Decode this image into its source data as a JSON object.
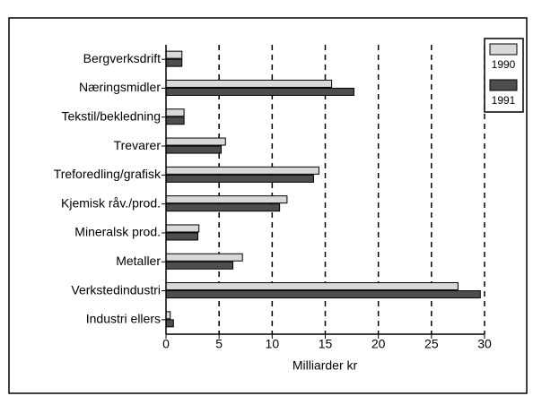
{
  "chart_data": {
    "type": "barh",
    "categories": [
      "Bergverksdrift",
      "Næringsmidler",
      "Tekstil/bekledning",
      "Trevarer",
      "Treforedling/grafisk",
      "Kjemisk råv./prod.",
      "Mineralsk prod.",
      "Metaller",
      "Verkstedindustri",
      "Industri ellers"
    ],
    "series": [
      {
        "name": "1990",
        "color": "#d9d9d9",
        "values": [
          1.5,
          15.6,
          1.7,
          5.6,
          14.4,
          11.4,
          3.1,
          7.2,
          27.5,
          0.4
        ]
      },
      {
        "name": "1991",
        "color": "#4d4d4d",
        "values": [
          1.5,
          17.7,
          1.7,
          5.2,
          13.9,
          10.7,
          3.0,
          6.3,
          29.6,
          0.7
        ]
      }
    ],
    "xlabel": "Milliarder kr",
    "xlim": [
      0,
      30
    ],
    "xticks": [
      0,
      5,
      10,
      15,
      20,
      25,
      30
    ],
    "grid": true,
    "legend": "upper right"
  }
}
